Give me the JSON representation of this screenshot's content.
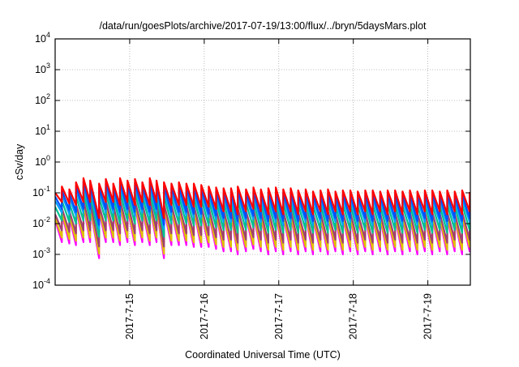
{
  "chart_data": {
    "type": "line",
    "title": "/data/run/goesPlots/archive/2017-07-19/13:00/flux/../bryn/5daysMars.plot",
    "xlabel": "Coordinated Universal Time (UTC)",
    "ylabel": "cSv/day",
    "yscale": "log",
    "ylim": [
      0.0001,
      10000
    ],
    "xlim_days_from_2017_07_14": [
      0,
      5.57
    ],
    "grid": true,
    "legend": "none",
    "y_ticks": [
      {
        "base": "10",
        "exp": "4",
        "value": 10000
      },
      {
        "base": "10",
        "exp": "3",
        "value": 1000
      },
      {
        "base": "10",
        "exp": "2",
        "value": 100
      },
      {
        "base": "10",
        "exp": "1",
        "value": 10
      },
      {
        "base": "10",
        "exp": "0",
        "value": 1
      },
      {
        "base": "10",
        "exp": "-1",
        "value": 0.1
      },
      {
        "base": "10",
        "exp": "-2",
        "value": 0.01
      },
      {
        "base": "10",
        "exp": "-3",
        "value": 0.001
      },
      {
        "base": "10",
        "exp": "-4",
        "value": 0.0001
      }
    ],
    "x_ticks": [
      {
        "label": "2017-7-15",
        "day": 1
      },
      {
        "label": "2017-7-16",
        "day": 2
      },
      {
        "label": "2017-7-17",
        "day": 3
      },
      {
        "label": "2017-7-18",
        "day": 4
      },
      {
        "label": "2017-7-19",
        "day": 5
      }
    ],
    "cycles": [
      [
        0.0,
        0.1,
        0.05
      ],
      [
        0.09,
        0.16,
        0.045
      ],
      [
        0.19,
        0.13,
        0.04
      ],
      [
        0.28,
        0.22,
        0.05
      ],
      [
        0.38,
        0.3,
        0.05
      ],
      [
        0.47,
        0.25,
        0.015
      ],
      [
        0.59,
        0.2,
        0.05
      ],
      [
        0.68,
        0.28,
        0.05
      ],
      [
        0.78,
        0.2,
        0.04
      ],
      [
        0.87,
        0.3,
        0.05
      ],
      [
        0.97,
        0.25,
        0.04
      ],
      [
        1.07,
        0.28,
        0.05
      ],
      [
        1.17,
        0.22,
        0.04
      ],
      [
        1.27,
        0.3,
        0.05
      ],
      [
        1.36,
        0.25,
        0.015
      ],
      [
        1.46,
        0.22,
        0.04
      ],
      [
        1.56,
        0.2,
        0.04
      ],
      [
        1.66,
        0.22,
        0.04
      ],
      [
        1.76,
        0.2,
        0.035
      ],
      [
        1.86,
        0.2,
        0.035
      ],
      [
        1.96,
        0.18,
        0.035
      ],
      [
        2.06,
        0.16,
        0.03
      ],
      [
        2.16,
        0.15,
        0.025
      ],
      [
        2.26,
        0.14,
        0.025
      ],
      [
        2.36,
        0.14,
        0.02
      ],
      [
        2.45,
        0.16,
        0.025
      ],
      [
        2.56,
        0.13,
        0.03
      ],
      [
        2.66,
        0.15,
        0.025
      ],
      [
        2.76,
        0.13,
        0.02
      ],
      [
        2.86,
        0.14,
        0.025
      ],
      [
        2.96,
        0.15,
        0.02
      ],
      [
        3.06,
        0.13,
        0.025
      ],
      [
        3.16,
        0.14,
        0.02
      ],
      [
        3.26,
        0.12,
        0.025
      ],
      [
        3.36,
        0.13,
        0.02
      ],
      [
        3.46,
        0.11,
        0.025
      ],
      [
        3.56,
        0.12,
        0.02
      ],
      [
        3.66,
        0.13,
        0.025
      ],
      [
        3.76,
        0.11,
        0.02
      ],
      [
        3.86,
        0.12,
        0.025
      ],
      [
        3.96,
        0.12,
        0.02
      ],
      [
        4.06,
        0.11,
        0.025
      ],
      [
        4.16,
        0.12,
        0.02
      ],
      [
        4.26,
        0.12,
        0.025
      ],
      [
        4.36,
        0.11,
        0.02
      ],
      [
        4.46,
        0.12,
        0.025
      ],
      [
        4.56,
        0.12,
        0.02
      ],
      [
        4.66,
        0.11,
        0.025
      ],
      [
        4.76,
        0.12,
        0.02
      ],
      [
        4.86,
        0.11,
        0.025
      ],
      [
        4.96,
        0.12,
        0.02
      ],
      [
        5.06,
        0.12,
        0.025
      ],
      [
        5.16,
        0.11,
        0.02
      ],
      [
        5.26,
        0.12,
        0.025
      ],
      [
        5.36,
        0.11,
        0.02
      ],
      [
        5.46,
        0.12,
        0.025
      ],
      [
        5.56,
        0.1,
        0.03
      ]
    ],
    "series": [
      {
        "name": "magenta",
        "color": "#ff00ff",
        "peak_factor": 0.13,
        "trough_factor": 0.05
      },
      {
        "name": "yellow",
        "color": "#e0c000",
        "peak_factor": 0.15,
        "trough_factor": 0.07
      },
      {
        "name": "brown",
        "color": "#a04070",
        "peak_factor": 0.2,
        "trough_factor": 0.12
      },
      {
        "name": "teal",
        "color": "#00c090",
        "peak_factor": 0.35,
        "trough_factor": 0.25
      },
      {
        "name": "light-blue",
        "color": "#00a0ff",
        "peak_factor": 0.55,
        "trough_factor": 0.45
      },
      {
        "name": "blue",
        "color": "#0050ff",
        "peak_factor": 0.75,
        "trough_factor": 0.6
      },
      {
        "name": "red",
        "color": "#ff0000",
        "peak_factor": 1.0,
        "trough_factor": 1.0
      }
    ]
  }
}
